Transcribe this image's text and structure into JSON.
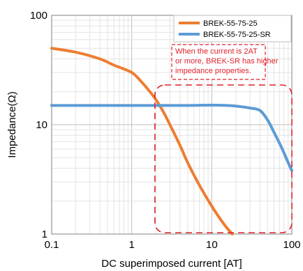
{
  "chart_data": {
    "type": "line",
    "title": "",
    "xlabel": "DC superimposed current [AT]",
    "ylabel": "Impedance(Ω)",
    "x_scale": "log",
    "y_scale": "log",
    "xlim": [
      0.1,
      100
    ],
    "ylim": [
      1,
      100
    ],
    "x_ticks": [
      0.1,
      1,
      10,
      100
    ],
    "x_tick_labels": [
      "0.1",
      "1",
      "10",
      "100"
    ],
    "y_ticks": [
      1,
      10,
      100
    ],
    "y_tick_labels": [
      "1",
      "10",
      "100"
    ],
    "grid": true,
    "legend_position": "top-right",
    "series": [
      {
        "name": "BREK-55-75-25",
        "color": "#ed7d31",
        "x": [
          0.1,
          0.2,
          0.4,
          0.6,
          1.0,
          1.3,
          1.6,
          2.0,
          2.5,
          3.0,
          4.0,
          5.0,
          7.0,
          10.0,
          14.0,
          18.0
        ],
        "y": [
          50,
          46,
          40,
          35,
          30,
          25,
          21,
          17,
          13,
          10,
          6.5,
          4.5,
          2.8,
          1.8,
          1.25,
          1.0
        ]
      },
      {
        "name": "BREK-55-75-25-SR",
        "color": "#5b9bd5",
        "x": [
          0.1,
          1,
          5,
          10,
          15,
          20,
          30,
          40,
          50,
          60,
          70,
          80,
          90,
          100
        ],
        "y": [
          15,
          15,
          15,
          15.1,
          15.0,
          14.8,
          14.2,
          13.5,
          11.0,
          8.5,
          6.8,
          5.5,
          4.5,
          3.8
        ]
      }
    ],
    "annotation": {
      "lines": [
        "When the current is 2AT",
        "or more, BREK-SR has higher",
        "impedance properties."
      ],
      "color": "#e0202a"
    }
  }
}
